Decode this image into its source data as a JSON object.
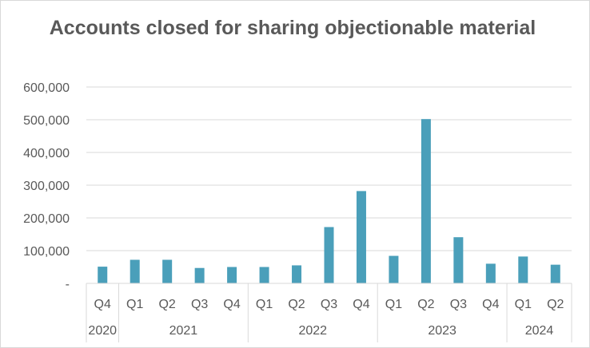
{
  "chart_data": {
    "type": "bar",
    "title": "Accounts closed for sharing objectionable material",
    "xlabel": "",
    "ylabel": "",
    "categories": [
      "Q4",
      "Q1",
      "Q2",
      "Q3",
      "Q4",
      "Q1",
      "Q2",
      "Q3",
      "Q4",
      "Q1",
      "Q2",
      "Q3",
      "Q4",
      "Q1",
      "Q2"
    ],
    "years": [
      {
        "label": "2020",
        "count": 1
      },
      {
        "label": "2021",
        "count": 4
      },
      {
        "label": "2022",
        "count": 4
      },
      {
        "label": "2023",
        "count": 4
      },
      {
        "label": "2024",
        "count": 2
      }
    ],
    "values": [
      51000,
      72000,
      72000,
      47000,
      50000,
      50000,
      55000,
      172000,
      282000,
      84000,
      502000,
      141000,
      60000,
      82000,
      57000
    ],
    "ylim": [
      0,
      600000
    ],
    "yticks": [
      0,
      100000,
      200000,
      300000,
      400000,
      500000,
      600000
    ],
    "ytick_labels": [
      "-",
      "100,000",
      "200,000",
      "300,000",
      "400,000",
      "500,000",
      "600,000"
    ],
    "grid": true,
    "legend": "none",
    "bar_color": "#4a9fba",
    "grid_color": "#d9d9d9"
  }
}
